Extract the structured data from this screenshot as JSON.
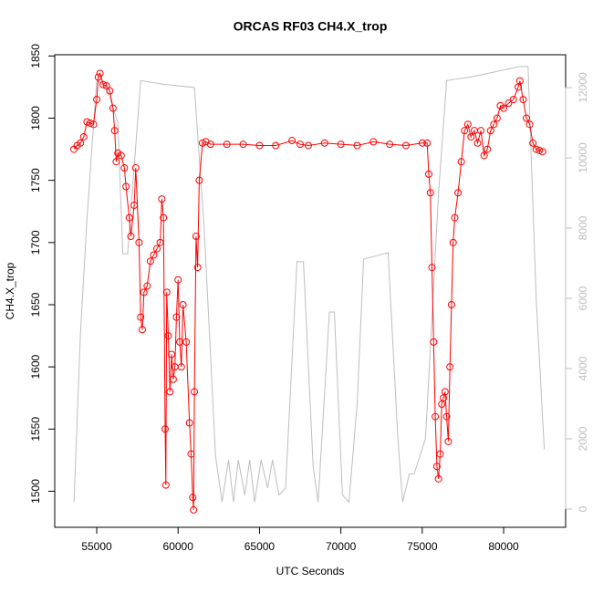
{
  "chart_data": {
    "type": "scatter",
    "title": "ORCAS RF03 CH4.X_trop",
    "x_label": "UTC Seconds",
    "y_label": "CH4.X_trop",
    "xlim": [
      52420,
      83810
    ],
    "xticks": [
      55000,
      60000,
      65000,
      70000,
      75000,
      80000
    ],
    "ylim": [
      1471,
      1851
    ],
    "yticks": [
      1500,
      1550,
      1600,
      1650,
      1700,
      1750,
      1800,
      1850
    ],
    "y2lim": [
      -520,
      12935
    ],
    "y2ticks": [
      0,
      2000,
      4000,
      6000,
      8000,
      10000,
      12000
    ],
    "series": [
      {
        "color": "#ff0000",
        "axis": "y",
        "points": true,
        "x": [
          53600,
          53800,
          54000,
          54200,
          54400,
          54600,
          54800,
          55000,
          55100,
          55200,
          55400,
          55600,
          55800,
          56000,
          56100,
          56200,
          56300,
          56500,
          56700,
          56800,
          57000,
          57100,
          57300,
          57400,
          57600,
          57700,
          57800,
          57900,
          58100,
          58300,
          58500,
          58700,
          58900,
          59000,
          59100,
          59200,
          59250,
          59300,
          59400,
          59500,
          59600,
          59700,
          59800,
          59900,
          60000,
          60100,
          60200,
          60300,
          60500,
          60700,
          60800,
          60900,
          60950,
          61000,
          61100,
          61200,
          61300,
          61500,
          61700,
          62000,
          63000,
          64000,
          65000,
          66000,
          67000,
          67500,
          68000,
          69000,
          70000,
          71000,
          72000,
          73000,
          74000,
          75000,
          75300,
          75400,
          75500,
          75600,
          75700,
          75800,
          75900,
          76000,
          76100,
          76200,
          76300,
          76400,
          76500,
          76600,
          76700,
          76800,
          76900,
          77000,
          77200,
          77400,
          77600,
          77800,
          78000,
          78200,
          78400,
          78600,
          78800,
          79000,
          79200,
          79400,
          79600,
          79800,
          80000,
          80300,
          80600,
          80900,
          81000,
          81200,
          81400,
          81600,
          81800,
          82000,
          82200,
          82400
        ],
        "values": [
          1775,
          1778,
          1780,
          1785,
          1797,
          1796,
          1795,
          1815,
          1833,
          1836,
          1827,
          1826,
          1822,
          1808,
          1790,
          1765,
          1772,
          1770,
          1760,
          1745,
          1720,
          1705,
          1730,
          1760,
          1700,
          1640,
          1630,
          1660,
          1665,
          1685,
          1690,
          1695,
          1700,
          1735,
          1720,
          1550,
          1505,
          1660,
          1625,
          1580,
          1610,
          1590,
          1600,
          1640,
          1670,
          1620,
          1600,
          1650,
          1620,
          1555,
          1530,
          1495,
          1485,
          1580,
          1705,
          1680,
          1750,
          1780,
          1781,
          1779,
          1779,
          1779,
          1778,
          1778,
          1782,
          1779,
          1778,
          1780,
          1779,
          1778,
          1781,
          1779,
          1778,
          1780,
          1780,
          1755,
          1740,
          1680,
          1620,
          1560,
          1520,
          1510,
          1530,
          1570,
          1575,
          1580,
          1560,
          1540,
          1600,
          1650,
          1700,
          1720,
          1740,
          1765,
          1790,
          1795,
          1785,
          1790,
          1780,
          1790,
          1770,
          1775,
          1790,
          1795,
          1800,
          1810,
          1808,
          1812,
          1815,
          1825,
          1830,
          1815,
          1800,
          1795,
          1780,
          1775,
          1774,
          1773
        ]
      },
      {
        "color": "#bebebe",
        "axis": "y2",
        "points": false,
        "x": [
          53600,
          54000,
          54400,
          55000,
          55600,
          56300,
          56600,
          56900,
          57700,
          59000,
          61000,
          61600,
          62300,
          62700,
          63100,
          63400,
          63700,
          64100,
          64400,
          64700,
          65100,
          65500,
          65800,
          66200,
          66600,
          67300,
          67700,
          68300,
          68600,
          69300,
          69600,
          70100,
          70500,
          71000,
          71400,
          72100,
          72900,
          73500,
          73800,
          74200,
          74500,
          75200,
          76000,
          76500,
          78000,
          81000,
          81500,
          82000,
          82500
        ],
        "values": [
          200,
          5000,
          8260,
          12200,
          12000,
          11000,
          7270,
          7270,
          12200,
          12100,
          12000,
          8000,
          1500,
          200,
          1400,
          200,
          1400,
          400,
          1400,
          200,
          1400,
          600,
          1400,
          400,
          600,
          7040,
          7040,
          1200,
          200,
          5610,
          5610,
          400,
          200,
          3000,
          7120,
          7200,
          7300,
          2000,
          200,
          1000,
          1000,
          2000,
          9000,
          12200,
          12300,
          12600,
          12600,
          6000,
          1700
        ]
      }
    ]
  }
}
